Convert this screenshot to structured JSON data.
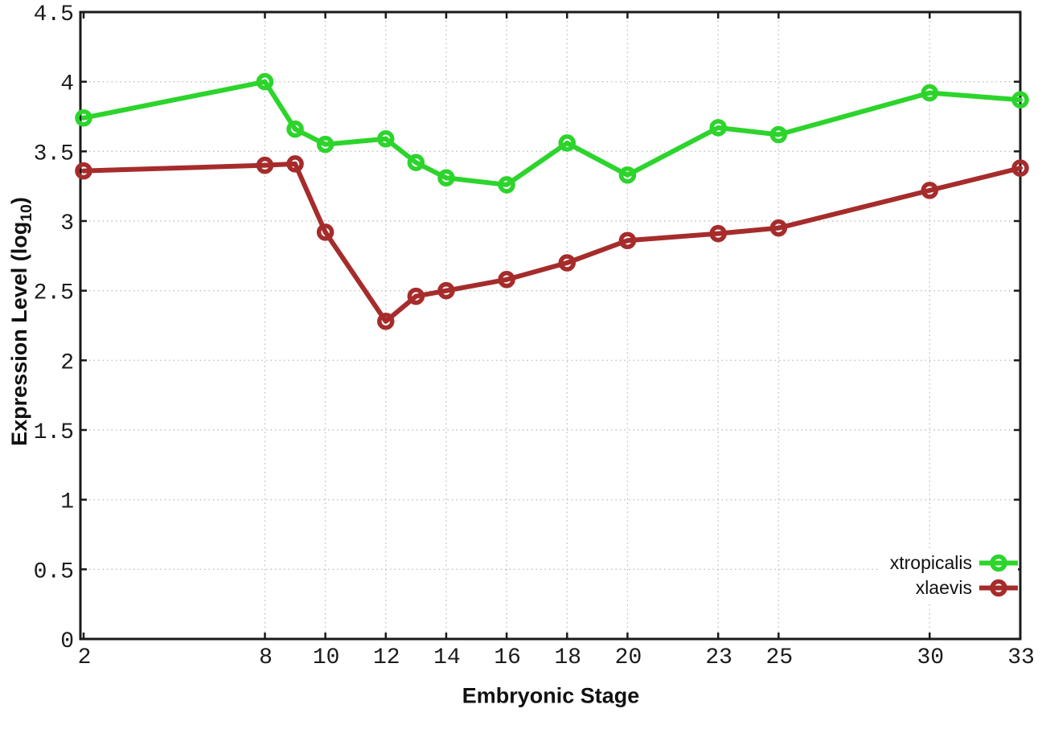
{
  "chart_data": {
    "type": "line",
    "title": "",
    "xlabel": "Embryonic Stage",
    "ylabel": "Expression Level (log10)",
    "ylabel_parts": {
      "main": "Expression Level (log",
      "sub": "10",
      "end": ")"
    },
    "x": [
      2,
      8,
      9,
      10,
      12,
      13,
      14,
      16,
      18,
      20,
      23,
      25,
      30,
      33
    ],
    "series": [
      {
        "name": "xtropicalis",
        "color": "#2cd42c",
        "values": [
          3.74,
          4.0,
          3.66,
          3.55,
          3.59,
          3.42,
          3.31,
          3.26,
          3.56,
          3.33,
          3.67,
          3.62,
          3.92,
          3.87
        ]
      },
      {
        "name": "xlaevis",
        "color": "#a62c2c",
        "values": [
          3.36,
          3.4,
          3.41,
          2.92,
          2.28,
          2.46,
          2.5,
          2.58,
          2.7,
          2.86,
          2.91,
          2.95,
          3.22,
          3.38
        ]
      }
    ],
    "xticks": {
      "values": [
        2,
        8,
        10,
        12,
        14,
        16,
        18,
        20,
        23,
        25,
        30,
        33
      ],
      "labels": [
        "2",
        "8",
        "10",
        "12",
        "14",
        "16",
        "18",
        "20",
        "23",
        "25",
        "30",
        "33"
      ]
    },
    "yticks": {
      "values": [
        0,
        0.5,
        1,
        1.5,
        2,
        2.5,
        3,
        3.5,
        4,
        4.5
      ],
      "labels": [
        "0",
        "0.5",
        "1",
        "1.5",
        "2",
        "2.5",
        "3",
        "3.5",
        "4",
        "4.5"
      ]
    },
    "xlim": [
      2,
      33
    ],
    "ylim": [
      0,
      4.5
    ],
    "grid": true,
    "legend_position": "bottom-right",
    "marker": "open-circle-with-center-dot",
    "colors": {
      "grid": "#c0c0c0",
      "axis": "#1a1a1a",
      "background": "#ffffff"
    }
  }
}
